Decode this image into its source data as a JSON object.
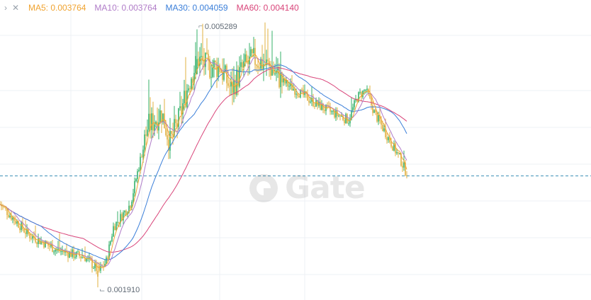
{
  "legend": {
    "chevron_icon": "chevron-right-icon",
    "close_icon": "close-icon",
    "items": [
      {
        "label": "MA5:",
        "value": "0.003764",
        "color": "#f0a330"
      },
      {
        "label": "MA10:",
        "value": "0.003764",
        "color": "#b07cc8"
      },
      {
        "label": "MA30:",
        "value": "0.004059",
        "color": "#3b7fd9"
      },
      {
        "label": "MA60:",
        "value": "0.004140",
        "color": "#d9457a"
      }
    ]
  },
  "chart_data": {
    "type": "candlestick",
    "grid": true,
    "high_label": "0.005289",
    "low_label": "0.001910",
    "current_price": 0.00337,
    "up_color": "#34b26a",
    "down_color": "#e0b040",
    "ma_colors": {
      "ma5": "#f0a330",
      "ma10": "#b07cc8",
      "ma30": "#3b7fd9",
      "ma60": "#d9457a"
    },
    "anchors": [
      [
        0,
        0.003
      ],
      [
        20,
        0.0026
      ],
      [
        40,
        0.0024
      ],
      [
        60,
        0.0023
      ],
      [
        70,
        0.00212
      ],
      [
        75,
        0.00225
      ],
      [
        80,
        0.0027
      ],
      [
        92,
        0.003
      ],
      [
        104,
        0.004
      ],
      [
        114,
        0.0042
      ],
      [
        120,
        0.0038
      ],
      [
        126,
        0.0041
      ],
      [
        135,
        0.0047
      ],
      [
        140,
        0.0049
      ],
      [
        146,
        0.0048
      ],
      [
        155,
        0.0048
      ],
      [
        163,
        0.0045
      ],
      [
        172,
        0.0048
      ],
      [
        180,
        0.0049
      ],
      [
        190,
        0.0048
      ],
      [
        200,
        0.0046
      ],
      [
        208,
        0.0045
      ],
      [
        216,
        0.0044
      ],
      [
        224,
        0.0043
      ],
      [
        234,
        0.0042
      ],
      [
        240,
        0.00415
      ],
      [
        246,
        0.0041
      ],
      [
        252,
        0.0044
      ],
      [
        258,
        0.0045
      ],
      [
        264,
        0.0042
      ],
      [
        270,
        0.004
      ],
      [
        276,
        0.0038
      ],
      [
        282,
        0.0036
      ],
      [
        287,
        0.0034
      ]
    ],
    "y_range": [
      0.0018,
      0.0056
    ],
    "dashed_line_color": "#3a8fb5",
    "watermark": "Gate"
  }
}
